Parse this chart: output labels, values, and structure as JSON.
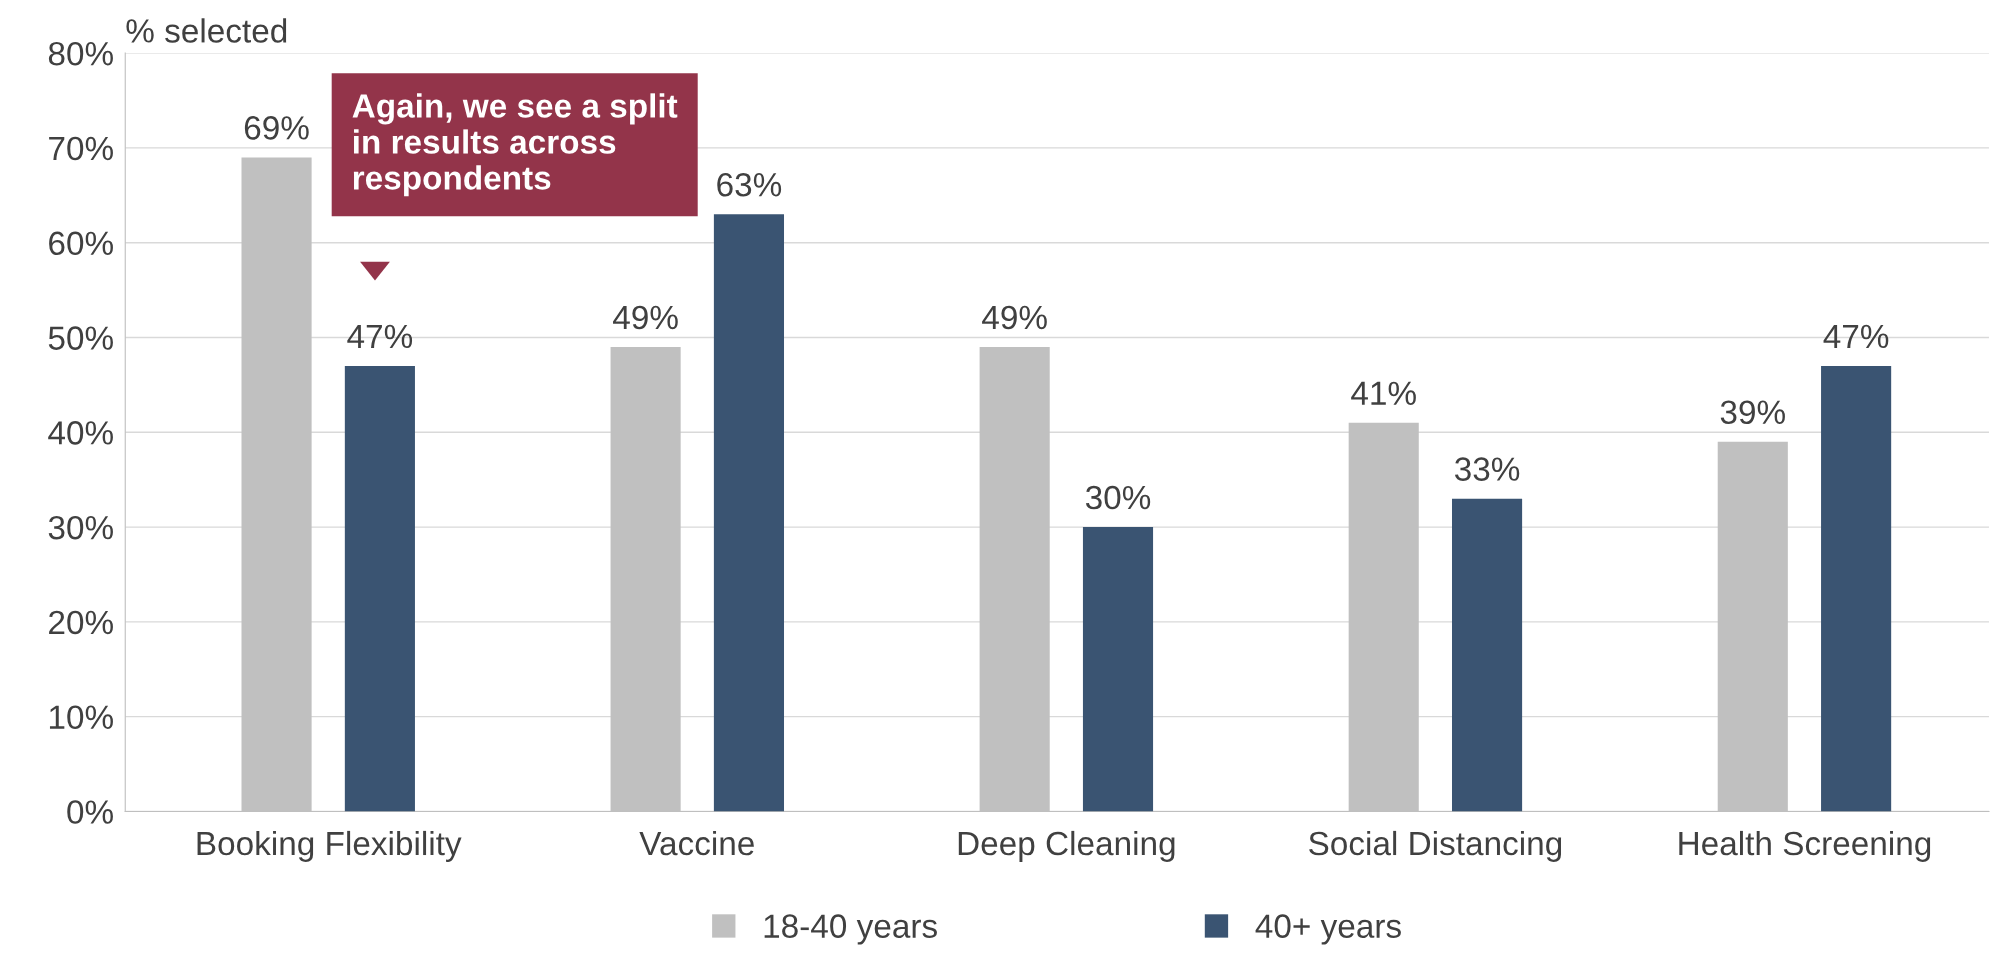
{
  "chart_data": {
    "type": "bar",
    "ylabel": "% selected",
    "categories": [
      "Booking Flexibility",
      "Vaccine",
      "Deep Cleaning",
      "Social Distancing",
      "Health Screening"
    ],
    "series": [
      {
        "name": "18-40 years",
        "color": "#c0c0c0",
        "values": [
          69,
          49,
          49,
          41,
          39
        ],
        "value_labels": [
          "69%",
          "49%",
          "49%",
          "41%",
          "39%"
        ]
      },
      {
        "name": "40+ years",
        "color": "#3a5472",
        "values": [
          47,
          63,
          30,
          33,
          47
        ],
        "value_labels": [
          "47%",
          "63%",
          "30%",
          "33%",
          "47%"
        ]
      }
    ],
    "ylim": [
      0,
      80
    ],
    "yticks": [
      {
        "value": 0,
        "label": "0%"
      },
      {
        "value": 10,
        "label": "10%"
      },
      {
        "value": 20,
        "label": "20%"
      },
      {
        "value": 30,
        "label": "30%"
      },
      {
        "value": 40,
        "label": "40%"
      },
      {
        "value": 50,
        "label": "50%"
      },
      {
        "value": 60,
        "label": "60%"
      },
      {
        "value": 70,
        "label": "70%"
      },
      {
        "value": 80,
        "label": "80%"
      }
    ],
    "grid": "y",
    "legend": "bottom",
    "annotations": [
      "Again, we see a split in results across respondents"
    ]
  }
}
